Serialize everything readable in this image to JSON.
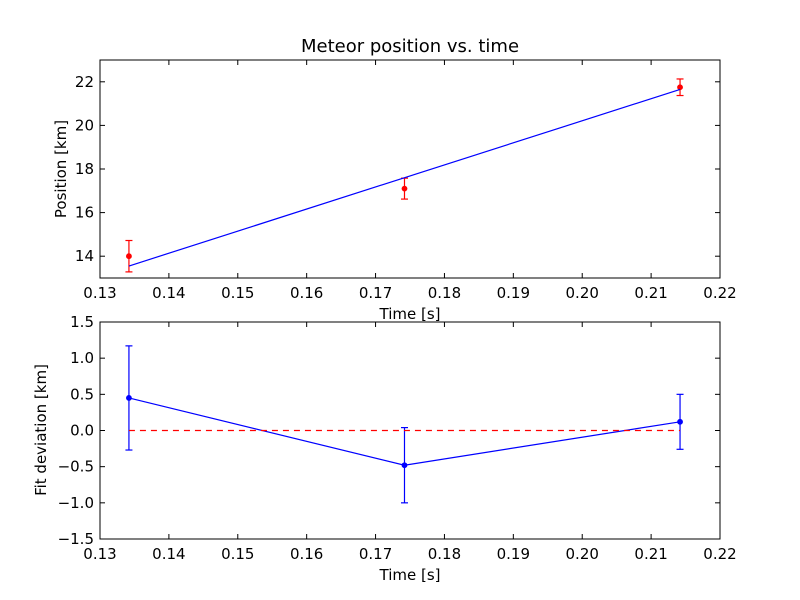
{
  "chart_data": [
    {
      "type": "scatter",
      "title": "Meteor position vs. time",
      "xlabel": "Time [s]",
      "ylabel": "Position [km]",
      "xlim": [
        0.13,
        0.22
      ],
      "ylim": [
        13.0,
        23.0
      ],
      "xticks": [
        0.13,
        0.14,
        0.15,
        0.16,
        0.17,
        0.18,
        0.19,
        0.2,
        0.21,
        0.22
      ],
      "xtick_labels": [
        "0.13",
        "0.14",
        "0.15",
        "0.16",
        "0.17",
        "0.18",
        "0.19",
        "0.20",
        "0.21",
        "0.22"
      ],
      "yticks": [
        14,
        16,
        18,
        20,
        22
      ],
      "ytick_labels": [
        "14",
        "16",
        "18",
        "20",
        "22"
      ],
      "grid": false,
      "series": [
        {
          "kind": "errorbar",
          "color": "#ff0000",
          "x": [
            0.1342,
            0.1742,
            0.2142
          ],
          "y": [
            14.0,
            17.1,
            21.75
          ],
          "yerr": [
            0.72,
            0.48,
            0.38
          ]
        },
        {
          "kind": "line",
          "color": "#0000ff",
          "x": [
            0.1342,
            0.2142
          ],
          "y": [
            13.55,
            21.65
          ]
        }
      ]
    },
    {
      "type": "line",
      "title": "",
      "xlabel": "Time [s]",
      "ylabel": "Fit deviation [km]",
      "xlim": [
        0.13,
        0.22
      ],
      "ylim": [
        -1.5,
        1.5
      ],
      "xticks": [
        0.13,
        0.14,
        0.15,
        0.16,
        0.17,
        0.18,
        0.19,
        0.2,
        0.21,
        0.22
      ],
      "xtick_labels": [
        "0.13",
        "0.14",
        "0.15",
        "0.16",
        "0.17",
        "0.18",
        "0.19",
        "0.20",
        "0.21",
        "0.22"
      ],
      "yticks": [
        -1.5,
        -1.0,
        -0.5,
        0.0,
        0.5,
        1.0,
        1.5
      ],
      "ytick_labels": [
        "−1.5",
        "−1.0",
        "−0.5",
        "0.0",
        "0.5",
        "1.0",
        "1.5"
      ],
      "grid": false,
      "series": [
        {
          "kind": "errorbar-line",
          "color": "#0000ff",
          "x": [
            0.1342,
            0.1742,
            0.2142
          ],
          "y": [
            0.45,
            -0.48,
            0.12
          ],
          "yerr": [
            0.72,
            0.52,
            0.38
          ]
        },
        {
          "kind": "dashed-line",
          "color": "#ff0000",
          "x": [
            0.1342,
            0.2142
          ],
          "y": [
            0.0,
            0.0
          ]
        }
      ]
    }
  ]
}
